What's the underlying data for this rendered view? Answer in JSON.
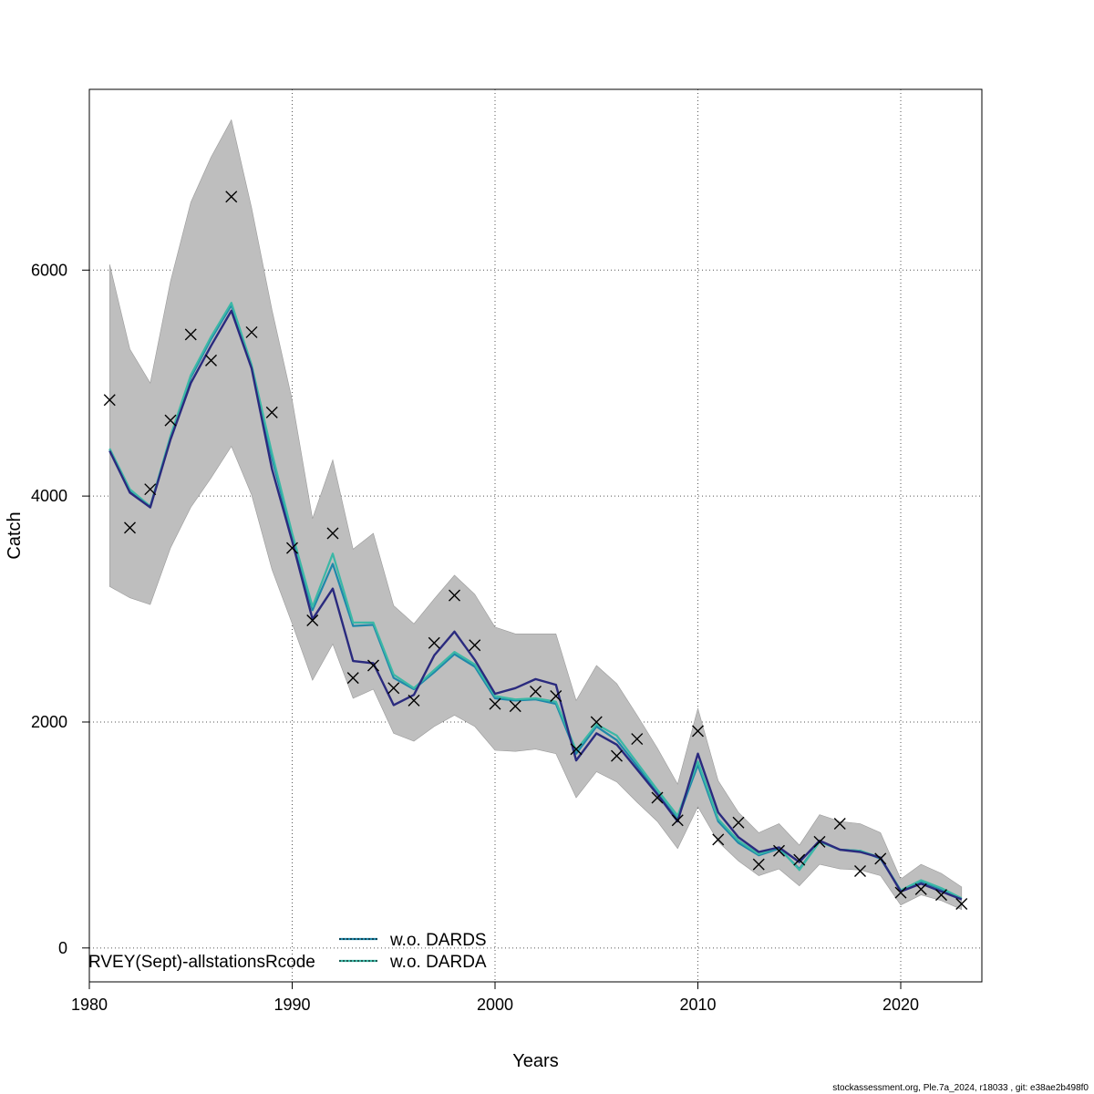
{
  "chart_data": {
    "type": "line",
    "xlabel": "Years",
    "ylabel": "Catch",
    "xlim": [
      1980,
      2024
    ],
    "ylim": [
      -300,
      7600
    ],
    "x_ticks": [
      1980,
      1990,
      2000,
      2010,
      2020
    ],
    "y_ticks": [
      0,
      2000,
      4000,
      6000
    ],
    "x_tick_labels": [
      "1980",
      "1990",
      "2000",
      "2010",
      "2020"
    ],
    "y_tick_labels": [
      "0",
      "2000",
      "4000",
      "6000"
    ],
    "grid": true,
    "legend_position": "bottom-left",
    "years": [
      1981,
      1982,
      1983,
      1984,
      1985,
      1986,
      1987,
      1988,
      1989,
      1990,
      1991,
      1992,
      1993,
      1994,
      1995,
      1996,
      1997,
      1998,
      1999,
      2000,
      2001,
      2002,
      2003,
      2004,
      2005,
      2006,
      2007,
      2008,
      2009,
      2010,
      2011,
      2012,
      2013,
      2014,
      2015,
      2016,
      2017,
      2018,
      2019,
      2020,
      2021,
      2022,
      2023
    ],
    "band": {
      "upper": [
        6050,
        5300,
        5000,
        5900,
        6600,
        7000,
        7330,
        6550,
        5650,
        4850,
        3800,
        4320,
        3530,
        3670,
        3030,
        2870,
        3090,
        3300,
        3130,
        2840,
        2780,
        2780,
        2780,
        2190,
        2500,
        2340,
        2060,
        1770,
        1450,
        2120,
        1480,
        1200,
        1020,
        1100,
        910,
        1180,
        1120,
        1100,
        1020,
        610,
        740,
        660,
        540
      ],
      "lower": [
        3200,
        3100,
        3040,
        3540,
        3900,
        4160,
        4440,
        4010,
        3350,
        2870,
        2370,
        2690,
        2210,
        2290,
        1900,
        1830,
        1960,
        2060,
        1960,
        1750,
        1740,
        1760,
        1720,
        1330,
        1560,
        1470,
        1290,
        1120,
        880,
        1250,
        940,
        770,
        640,
        700,
        550,
        740,
        700,
        690,
        640,
        380,
        470,
        420,
        340
      ]
    },
    "series": [
      {
        "name": "",
        "color": "#2a2a7e",
        "values": [
          4400,
          4030,
          3900,
          4500,
          5000,
          5330,
          5640,
          5130,
          4240,
          3600,
          2910,
          3180,
          2540,
          2520,
          2150,
          2240,
          2590,
          2800,
          2550,
          2250,
          2300,
          2380,
          2330,
          1660,
          1900,
          1800,
          1580,
          1360,
          1120,
          1720,
          1200,
          980,
          850,
          890,
          760,
          950,
          870,
          850,
          800,
          500,
          570,
          500,
          430
        ]
      },
      {
        "name": "w.o. DARDS",
        "color": "#1e88aa",
        "values": [
          4410,
          4050,
          3900,
          4520,
          5050,
          5390,
          5690,
          5140,
          4340,
          3640,
          2990,
          3400,
          2850,
          2860,
          2390,
          2290,
          2440,
          2600,
          2490,
          2210,
          2190,
          2200,
          2160,
          1720,
          1960,
          1840,
          1610,
          1370,
          1140,
          1620,
          1120,
          930,
          820,
          880,
          700,
          940,
          870,
          860,
          790,
          510,
          590,
          520,
          430
        ]
      },
      {
        "name": "w.o. DARDA",
        "color": "#3bb8a6",
        "values": [
          4420,
          4060,
          3910,
          4530,
          5070,
          5410,
          5710,
          5160,
          4380,
          3670,
          3020,
          3490,
          2880,
          2880,
          2420,
          2300,
          2460,
          2620,
          2510,
          2230,
          2200,
          2210,
          2180,
          1750,
          1980,
          1880,
          1640,
          1400,
          1170,
          1650,
          1140,
          950,
          830,
          890,
          690,
          940,
          870,
          860,
          800,
          510,
          600,
          530,
          440
        ]
      }
    ],
    "points": {
      "marker": "x",
      "values": [
        4850,
        3720,
        4060,
        4670,
        5430,
        5200,
        6650,
        5450,
        4740,
        3540,
        2900,
        3670,
        2390,
        2500,
        2300,
        2190,
        2700,
        3120,
        2680,
        2160,
        2140,
        2270,
        2230,
        1760,
        2000,
        1700,
        1850,
        1330,
        1130,
        1920,
        960,
        1110,
        740,
        860,
        780,
        940,
        1100,
        680,
        790,
        490,
        520,
        470,
        390
      ]
    },
    "annotation": "RVEY(Sept)-allstationsRcode",
    "footer": "stockassessment.org, Ple.7a_2024, r18033 , git: e38ae2b498f0"
  }
}
